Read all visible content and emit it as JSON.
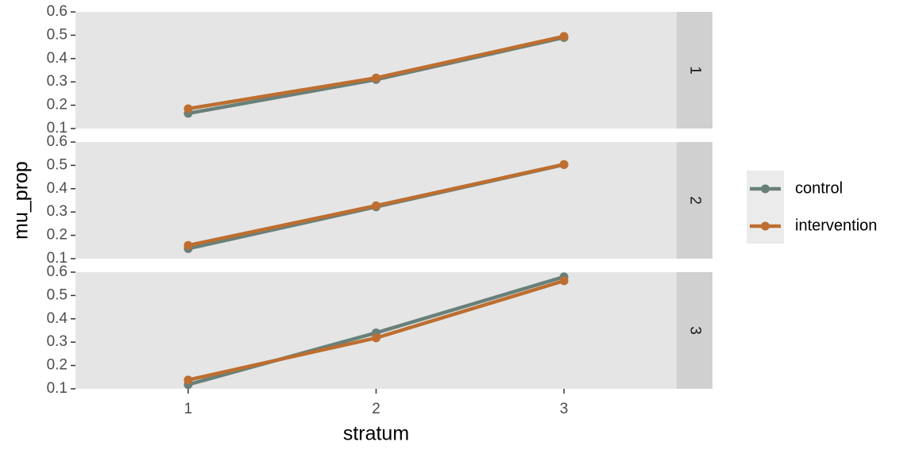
{
  "chart_data": {
    "type": "line",
    "facet_by": "row",
    "x_label": "stratum",
    "y_label": "mu_prop",
    "x_ticks": [
      "1",
      "2",
      "3"
    ],
    "x_range": [
      0.4,
      3.6
    ],
    "y_range": [
      0.1,
      0.6
    ],
    "y_ticks": [
      "0.1",
      "0.2",
      "0.3",
      "0.4",
      "0.5",
      "0.6"
    ],
    "grid": false,
    "legend_position": "right",
    "series_styles": [
      {
        "name": "control",
        "color": "#69807A"
      },
      {
        "name": "intervention",
        "color": "#BD6E30"
      }
    ],
    "panels": [
      {
        "strip_label": "1",
        "series": [
          {
            "name": "control",
            "x": [
              1,
              2,
              3
            ],
            "values": [
              0.165,
              0.31,
              0.49
            ]
          },
          {
            "name": "intervention",
            "x": [
              1,
              2,
              3
            ],
            "values": [
              0.185,
              0.317,
              0.495
            ]
          }
        ]
      },
      {
        "strip_label": "2",
        "series": [
          {
            "name": "control",
            "x": [
              1,
              2,
              3
            ],
            "values": [
              0.143,
              0.322,
              0.503
            ]
          },
          {
            "name": "intervention",
            "x": [
              1,
              2,
              3
            ],
            "values": [
              0.157,
              0.327,
              0.504
            ]
          }
        ]
      },
      {
        "strip_label": "3",
        "series": [
          {
            "name": "control",
            "x": [
              1,
              2,
              3
            ],
            "values": [
              0.118,
              0.34,
              0.58
            ]
          },
          {
            "name": "intervention",
            "x": [
              1,
              2,
              3
            ],
            "values": [
              0.138,
              0.318,
              0.563
            ]
          }
        ]
      }
    ]
  }
}
